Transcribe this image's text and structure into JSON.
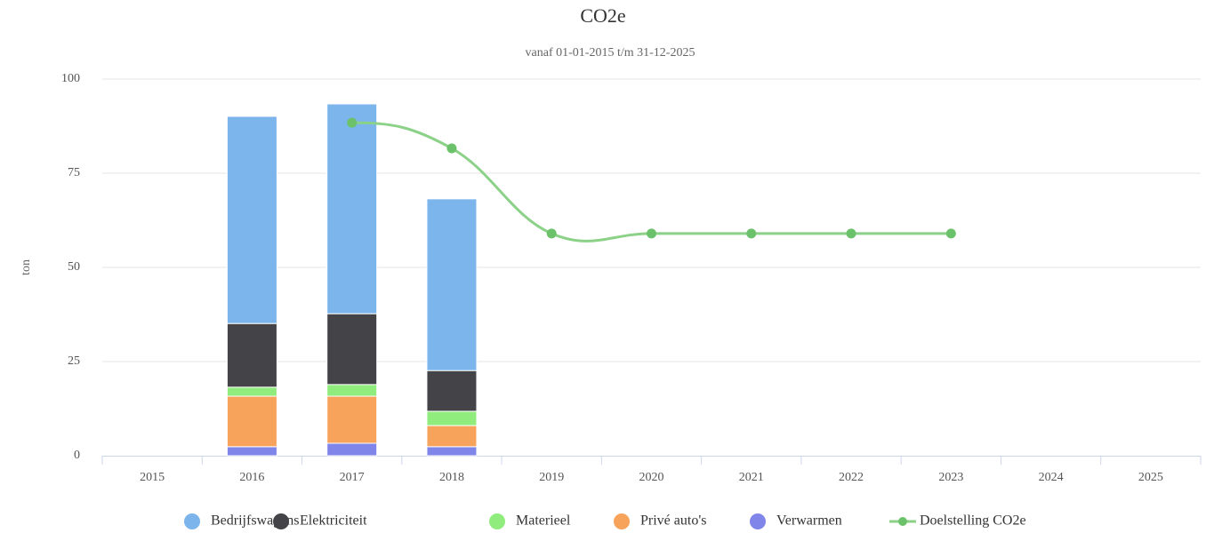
{
  "chart_data": {
    "type": "stacked-bar-line",
    "title": "CO2e",
    "subtitle": "vanaf 01-01-2015 t/m 31-12-2025",
    "y_label": "ton",
    "categories": [
      "2015",
      "2016",
      "2017",
      "2018",
      "2019",
      "2020",
      "2021",
      "2022",
      "2023",
      "2024",
      "2025"
    ],
    "series": [
      {
        "name": "Bedrijfswagens",
        "color": "#7cb5ec",
        "type": "bar",
        "values": [
          null,
          55.0,
          55.7,
          45.6,
          null,
          null,
          null,
          null,
          null,
          null,
          null
        ]
      },
      {
        "name": "Elektriciteit",
        "color": "#434348",
        "type": "bar",
        "values": [
          null,
          16.9,
          18.8,
          10.8,
          null,
          null,
          null,
          null,
          null,
          null,
          null
        ]
      },
      {
        "name": "Materieel",
        "color": "#90ed7d",
        "type": "bar",
        "values": [
          null,
          2.4,
          3.1,
          3.8,
          null,
          null,
          null,
          null,
          null,
          null,
          null
        ]
      },
      {
        "name": "Privé auto's",
        "color": "#f7a35c",
        "type": "bar",
        "values": [
          null,
          13.4,
          12.5,
          5.6,
          null,
          null,
          null,
          null,
          null,
          null,
          null
        ]
      },
      {
        "name": "Verwarmen",
        "color": "#8085e9",
        "type": "bar",
        "values": [
          null,
          2.4,
          3.3,
          2.4,
          null,
          null,
          null,
          null,
          null,
          null,
          null
        ]
      },
      {
        "name": "Doelstelling CO2e",
        "color": "#8bd187",
        "marker_color": "#6cc26a",
        "type": "line",
        "values": [
          null,
          null,
          88.4,
          81.6,
          59.0,
          59.0,
          59.0,
          59.0,
          59.0,
          null,
          null
        ]
      }
    ],
    "ylim": [
      0,
      100
    ],
    "yticks": [
      0,
      25,
      50,
      75,
      100
    ],
    "grid": true,
    "legend": "bottom"
  }
}
